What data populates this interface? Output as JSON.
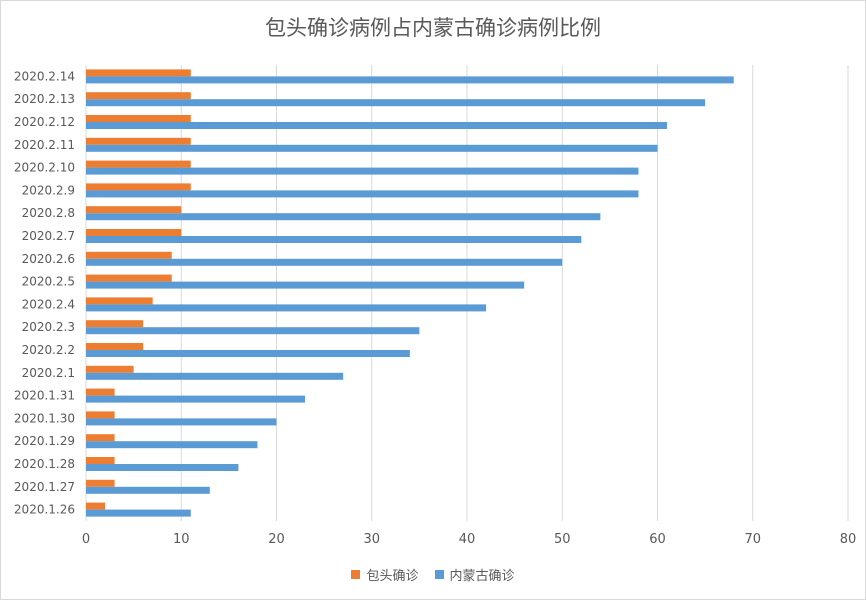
{
  "chart_data": {
    "type": "bar",
    "orientation": "horizontal",
    "title": "包头确诊病例占内蒙古确诊病例比例",
    "categories": [
      "2020.1.26",
      "2020.1.27",
      "2020.1.28",
      "2020.1.29",
      "2020.1.30",
      "2020.1.31",
      "2020.2.1",
      "2020.2.2",
      "2020.2.3",
      "2020.2.4",
      "2020.2.5",
      "2020.2.6",
      "2020.2.7",
      "2020.2.8",
      "2020.2.9",
      "2020.2.10",
      "2020.2.11",
      "2020.2.12",
      "2020.2.13",
      "2020.2.14"
    ],
    "series": [
      {
        "name": "包头确诊",
        "color": "#ed7d31",
        "values": [
          2,
          3,
          3,
          3,
          3,
          3,
          5,
          6,
          6,
          7,
          9,
          9,
          10,
          10,
          11,
          11,
          11,
          11,
          11,
          11
        ]
      },
      {
        "name": "内蒙古确诊",
        "color": "#5b9bd5",
        "values": [
          11,
          13,
          16,
          18,
          20,
          23,
          27,
          34,
          35,
          42,
          46,
          50,
          52,
          54,
          58,
          58,
          60,
          61,
          65,
          68
        ]
      }
    ],
    "xlim": [
      0,
      80
    ],
    "xticks": [
      0,
      10,
      20,
      30,
      40,
      50,
      60,
      70,
      80
    ],
    "grid": true,
    "legend_position": "bottom"
  }
}
